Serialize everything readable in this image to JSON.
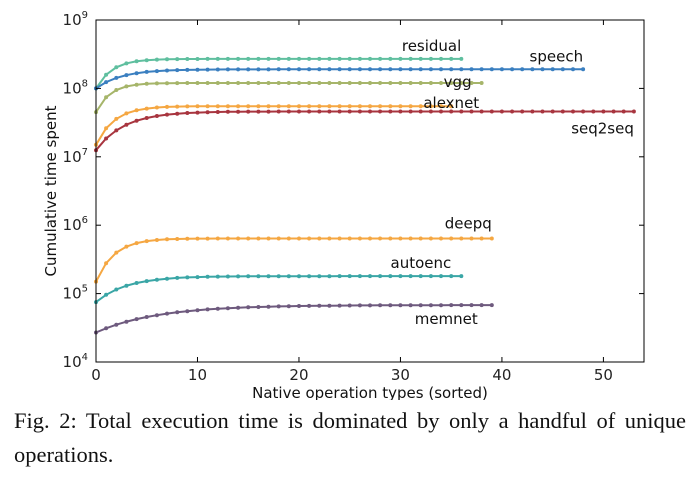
{
  "caption": "Fig. 2: Total execution time is dominated by only a handful of unique operations.",
  "chart_data": {
    "type": "line",
    "xlabel": "Native operation types (sorted)",
    "ylabel": "Cumulative time spent",
    "xlim": [
      0,
      54
    ],
    "ylim": [
      10000,
      1000000000
    ],
    "yscale": "log",
    "xticks": [
      "0",
      "10",
      "20",
      "30",
      "40",
      "50"
    ],
    "yticks": [
      {
        "base": "10",
        "exp": "4"
      },
      {
        "base": "10",
        "exp": "5"
      },
      {
        "base": "10",
        "exp": "6"
      },
      {
        "base": "10",
        "exp": "7"
      },
      {
        "base": "10",
        "exp": "8"
      },
      {
        "base": "10",
        "exp": "9"
      }
    ],
    "grid": false,
    "series": [
      {
        "name": "residual",
        "color": "#5fbf9f",
        "npoints": 37,
        "start": 100000000,
        "final": 270000000,
        "k": 1.6
      },
      {
        "name": "speech",
        "color": "#3a7fc0",
        "npoints": 49,
        "start": 100000000,
        "final": 190000000,
        "k": 2.5
      },
      {
        "name": "vgg",
        "color": "#a6b56a",
        "npoints": 39,
        "start": 45000000,
        "final": 120000000,
        "k": 1.4
      },
      {
        "name": "alexnet",
        "color": "#f5a742",
        "npoints": 36,
        "start": 15000000,
        "final": 55000000,
        "k": 1.8
      },
      {
        "name": "seq2seq",
        "color": "#a8353f",
        "npoints": 54,
        "start": 12500000,
        "final": 46000000,
        "k": 2.8
      },
      {
        "name": "deepq",
        "color": "#f5a742",
        "npoints": 40,
        "start": 150000,
        "final": 640000,
        "k": 1.8
      },
      {
        "name": "autoenc",
        "color": "#3aa6a6",
        "npoints": 37,
        "start": 75000,
        "final": 180000,
        "k": 3.0
      },
      {
        "name": "memnet",
        "color": "#6e5a7e",
        "npoints": 40,
        "start": 27000,
        "final": 68000,
        "k": 6.0
      }
    ]
  }
}
